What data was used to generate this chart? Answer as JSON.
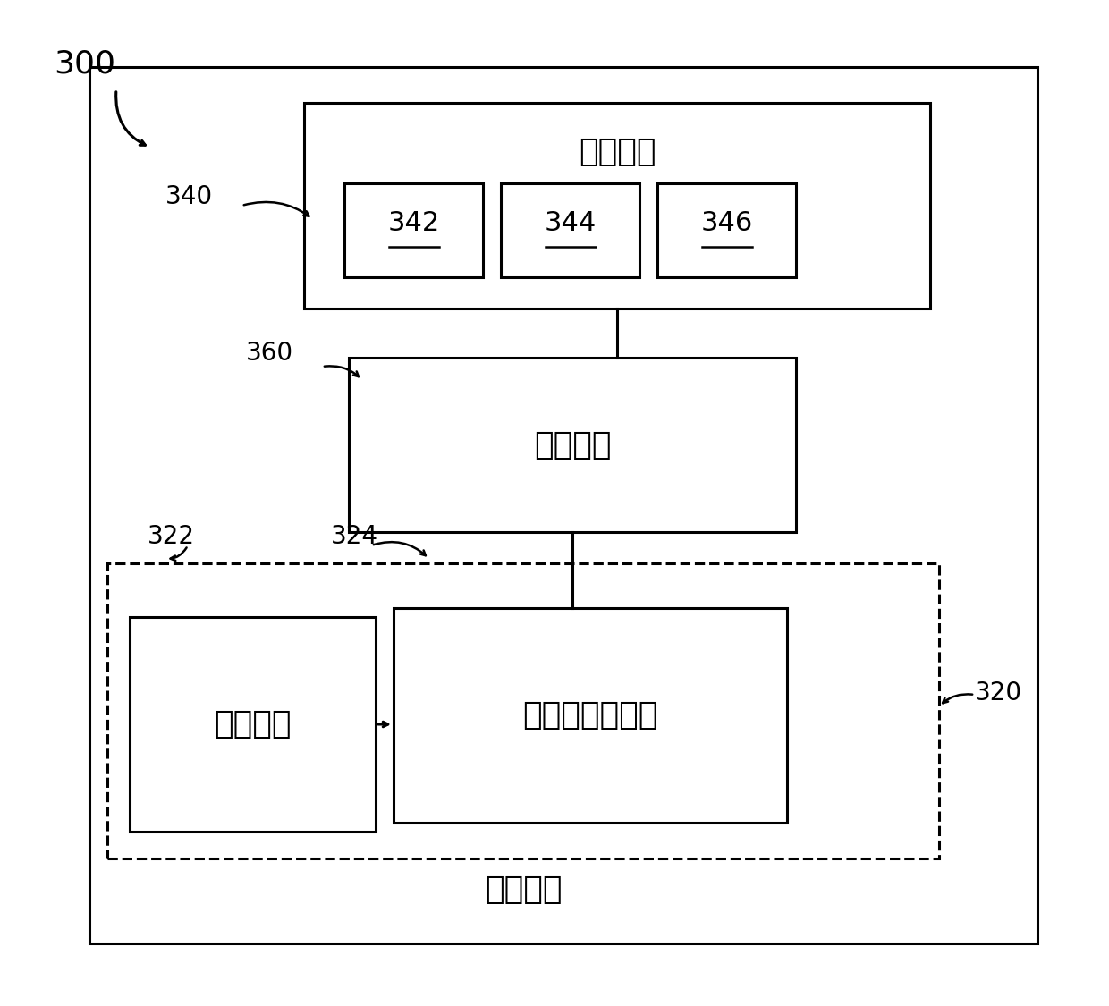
{
  "fig_width": 12.4,
  "fig_height": 11.25,
  "bg_color": "#ffffff",
  "label_300": "300",
  "label_340": "340",
  "label_360": "360",
  "label_320": "320",
  "label_322": "322",
  "label_324": "324",
  "flash_label": "闪光模块",
  "control_label": "控制单元",
  "camera_label": "相机单元",
  "wb_label": "白平衡计算单元",
  "optical_label": "光学模块",
  "sub_labels": [
    "342",
    "344",
    "346"
  ],
  "font_size_title": 26,
  "font_size_label": 22,
  "font_size_annot": 20
}
